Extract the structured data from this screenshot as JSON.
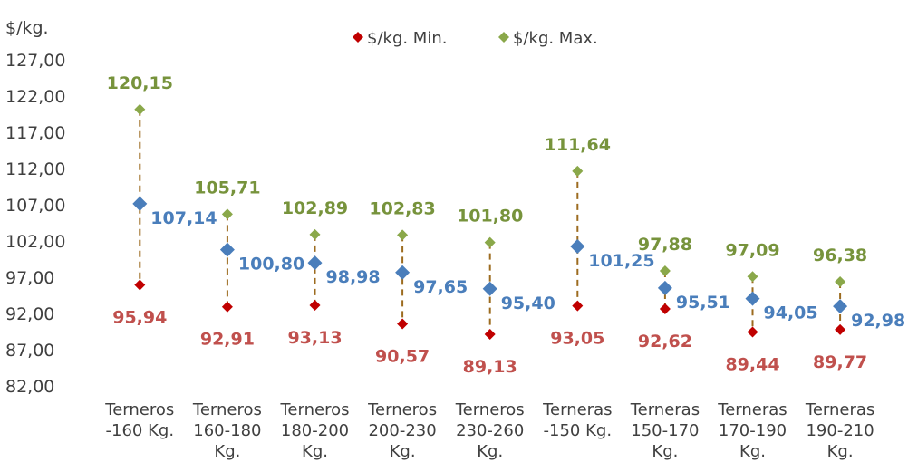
{
  "chart_data": {
    "type": "scatter",
    "ylabel": "$/kg.",
    "ylim": [
      82,
      127
    ],
    "ytick_labels": [
      "82,00",
      "87,00",
      "92,00",
      "97,00",
      "102,00",
      "107,00",
      "112,00",
      "117,00",
      "122,00",
      "127,00"
    ],
    "categories": [
      [
        "Terneros",
        "-160 Kg."
      ],
      [
        "Terneros",
        "160-180",
        "Kg."
      ],
      [
        "Terneros",
        "180-200",
        "Kg."
      ],
      [
        "Terneros",
        "200-230",
        "Kg."
      ],
      [
        "Terneros",
        "230-260",
        "Kg."
      ],
      [
        "Terneras",
        "-150 Kg."
      ],
      [
        "Terneras",
        "150-170",
        "Kg."
      ],
      [
        "Terneras",
        "170-190",
        "Kg."
      ],
      [
        "Terneras",
        "190-210",
        "Kg."
      ]
    ],
    "legend": {
      "position": "top",
      "items": [
        "$/kg. Min.",
        "$/kg. Max."
      ]
    },
    "series": [
      {
        "name": "$/kg. Min.",
        "color": "#c00000",
        "values": [
          95.94,
          92.91,
          93.13,
          90.57,
          89.13,
          93.05,
          92.62,
          89.44,
          89.77
        ],
        "labels": [
          "95,94",
          "92,91",
          "93,13",
          "90,57",
          "89,13",
          "93,05",
          "92,62",
          "89,44",
          "89,77"
        ]
      },
      {
        "color": "#4a7ebb",
        "values": [
          107.14,
          100.8,
          98.98,
          97.65,
          95.4,
          101.25,
          95.51,
          94.05,
          92.98
        ],
        "labels": [
          "107,14",
          "100,80",
          "98,98",
          "97,65",
          "95,40",
          "101,25",
          "95,51",
          "94,05",
          "92,98"
        ]
      },
      {
        "name": "$/kg. Max.",
        "color": "#77933c",
        "values": [
          120.15,
          105.71,
          102.89,
          102.83,
          101.8,
          111.64,
          97.88,
          97.09,
          96.38
        ],
        "labels": [
          "120,15",
          "105,71",
          "102,89",
          "102,83",
          "101,80",
          "111,64",
          "97,88",
          "97,09",
          "96,38"
        ]
      }
    ],
    "label_colors": {
      "min": "#c0504d",
      "avg": "#4a7ebb",
      "max": "#77933c"
    },
    "connector_color": "#9c6b1f"
  }
}
